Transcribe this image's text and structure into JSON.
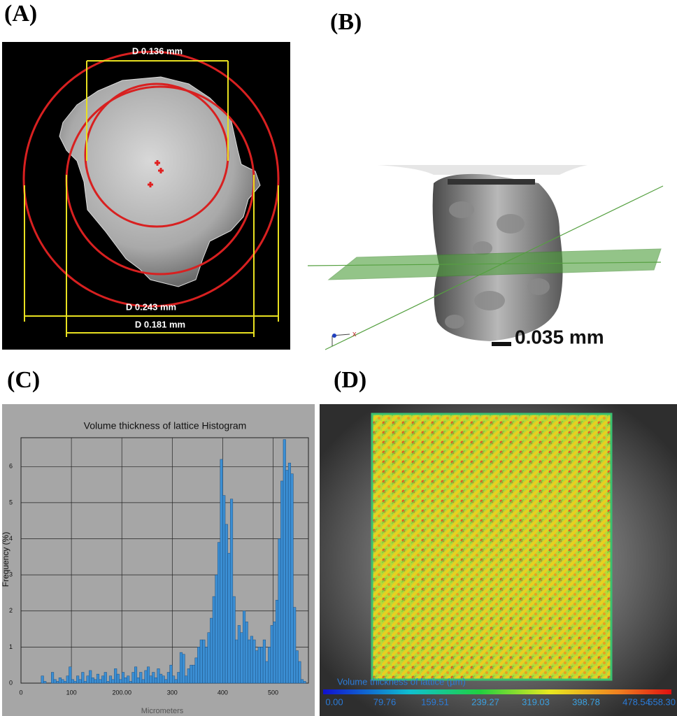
{
  "panel_labels": [
    "(A)",
    "(B)",
    "(C)",
    "(D)"
  ],
  "panel_a": {
    "dimensions": [
      "D 0.136 mm",
      "D 0.243 mm",
      "D 0.181 mm"
    ]
  },
  "panel_b": {
    "scale_bar": "0.035 mm",
    "axis_label": "x"
  },
  "chart_data": {
    "type": "histogram",
    "title": "Volume thickness of lattice Histogram",
    "x_label": "Micrometers",
    "y_label": "Frequency (%)",
    "bins": [
      0,
      5,
      10,
      15,
      20,
      25,
      30,
      35,
      40,
      45,
      50,
      55,
      60,
      65,
      70,
      75,
      80,
      85,
      90,
      95,
      100,
      105,
      110,
      115,
      120,
      125,
      130,
      135,
      140,
      145,
      150,
      155,
      160,
      165,
      170,
      175,
      180,
      185,
      190,
      195,
      200,
      205,
      210,
      215,
      220,
      225,
      230,
      235,
      240,
      245,
      250,
      255,
      260,
      265,
      270,
      275,
      280,
      285,
      290,
      295,
      300,
      305,
      310,
      315,
      320,
      325,
      330,
      335,
      340,
      345,
      350,
      355,
      360,
      365,
      370,
      375,
      380,
      385,
      390,
      395,
      400,
      405,
      410,
      415,
      420,
      425,
      430,
      435,
      440,
      445,
      450,
      455,
      460,
      465,
      470,
      475,
      480,
      485,
      490,
      495,
      500,
      505,
      510,
      515,
      520,
      525,
      530,
      535,
      540,
      545,
      550,
      555,
      560,
      565
    ],
    "values": [
      0,
      0,
      0,
      0,
      0,
      0,
      0,
      0,
      0.2,
      0.05,
      0,
      0,
      0.3,
      0.1,
      0.05,
      0.15,
      0.1,
      0.05,
      0.2,
      0.45,
      0.1,
      0.05,
      0.2,
      0.1,
      0.3,
      0.05,
      0.2,
      0.35,
      0.15,
      0.1,
      0.25,
      0.1,
      0.2,
      0.3,
      0.05,
      0.2,
      0.1,
      0.4,
      0.25,
      0.1,
      0.3,
      0.15,
      0.2,
      0.05,
      0.3,
      0.45,
      0.15,
      0.3,
      0.1,
      0.35,
      0.45,
      0.2,
      0.3,
      0.15,
      0.4,
      0.25,
      0.2,
      0.1,
      0.3,
      0.5,
      0.2,
      0.1,
      0.3,
      0.85,
      0.8,
      0.2,
      0.4,
      0.5,
      0.5,
      0.7,
      1.0,
      1.2,
      1.2,
      1.0,
      1.4,
      1.8,
      2.4,
      3.0,
      3.9,
      6.2,
      5.2,
      4.4,
      3.6,
      5.1,
      2.4,
      1.2,
      1.6,
      1.4,
      2.0,
      1.7,
      1.2,
      1.3,
      1.2,
      0.9,
      1.0,
      1.0,
      1.2,
      0.6,
      1.0,
      1.6,
      1.7,
      2.3,
      4.0,
      5.6,
      6.75,
      5.9,
      6.1,
      5.8,
      2.1,
      0.9,
      0.6,
      0.1,
      0.05
    ],
    "color": "#3b8fd4",
    "xlim": [
      0,
      570
    ],
    "ylim": [
      0,
      6.8
    ],
    "xticks": [
      0,
      100,
      {
        "value": 200,
        "label": "200.00"
      },
      300,
      400,
      500
    ],
    "yticks": [
      0,
      1,
      2,
      3,
      4,
      5,
      6
    ],
    "grid": true
  },
  "panel_d": {
    "colorbar_title": "Volume thickness of lattice (µm)",
    "colorbar_labels": [
      "0.00",
      "79.76",
      "159.51",
      "239.27",
      "319.03",
      "398.78",
      "478.54",
      "558.30"
    ]
  }
}
